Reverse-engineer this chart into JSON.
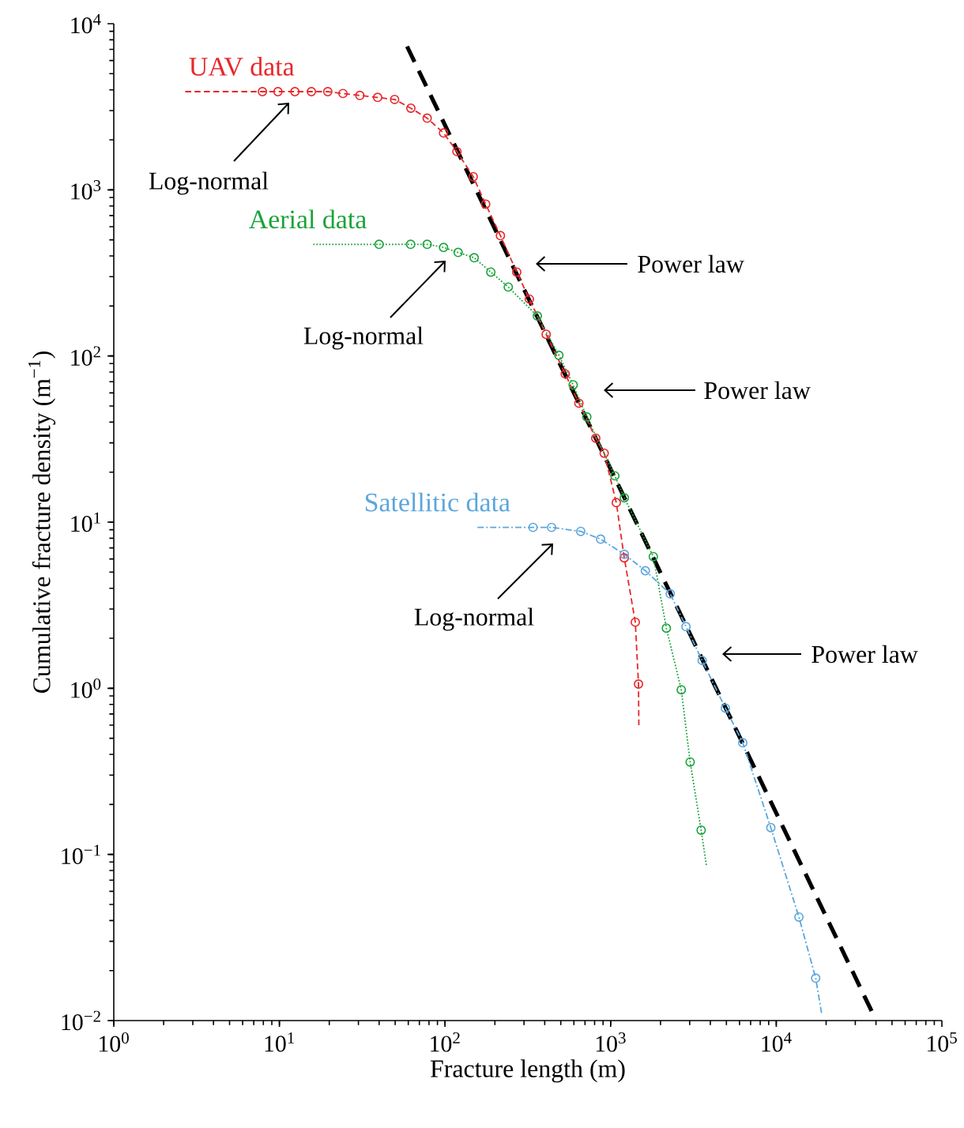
{
  "chart_data": {
    "type": "line",
    "xlabel": "Fracture length (m)",
    "ylabel": "Cumulative fracture density (m$^{−1}$)",
    "log": "xy",
    "grid": false,
    "legend": false,
    "xlim": [
      1,
      100000
    ],
    "ylim": [
      0.01,
      10000
    ],
    "xticks": [
      {
        "value": 1,
        "label": "10$^{0}$"
      },
      {
        "value": 10,
        "label": "10$^{1}$"
      },
      {
        "value": 100,
        "label": "10$^{2}$"
      },
      {
        "value": 1000,
        "label": "10$^{3}$"
      },
      {
        "value": 10000,
        "label": "10$^{4}$"
      },
      {
        "value": 100000,
        "label": "10$^{5}$"
      }
    ],
    "yticks": [
      {
        "value": 0.01,
        "label": "10$^{−2}$"
      },
      {
        "value": 0.1,
        "label": "10$^{−1}$"
      },
      {
        "value": 1,
        "label": "10$^{0}$"
      },
      {
        "value": 10,
        "label": "10$^{1}$"
      },
      {
        "value": 100,
        "label": "10$^{2}$"
      },
      {
        "value": 1000,
        "label": "10$^{3}$"
      },
      {
        "value": 10000,
        "label": "10$^{4}$"
      }
    ],
    "series": [
      {
        "color": "#000000",
        "line_style": "dashed",
        "marker": "none",
        "x": [
          59,
          39000
        ],
        "values": [
          7300,
          0.0106
        ]
      },
      {
        "name": "UAV data",
        "color": "#e8262a",
        "line_style": "dashed",
        "marker": "none",
        "x": [
          2.7,
          7.9,
          9.8,
          12.4,
          15.6,
          19.6,
          24.2,
          30.6,
          39.2,
          49.6,
          62.2,
          78,
          98,
          118,
          148,
          176,
          216,
          271,
          323,
          408,
          532,
          643,
          813,
          914,
          1082,
          1208,
          1409,
          1473,
          1480
        ],
        "values": [
          3900,
          3900,
          3900,
          3900,
          3900,
          3900,
          3800,
          3700,
          3600,
          3500,
          3100,
          2700,
          2200,
          1700,
          1200,
          820,
          530,
          320,
          220,
          135,
          78,
          52,
          32,
          26,
          13.1,
          6.1,
          2.5,
          1.06,
          0.6
        ]
      },
      {
        "name": "Aerial data",
        "color": "#1aa33a",
        "line_style": "dotted",
        "marker": "none",
        "x": [
          16,
          40,
          62,
          78,
          98,
          120,
          150,
          189,
          241,
          361,
          487,
          594,
          718,
          1060,
          1210,
          1810,
          2170,
          2670,
          3020,
          3520,
          3790
        ],
        "values": [
          470,
          470,
          470,
          470,
          450,
          420,
          390,
          320,
          260,
          174,
          101,
          67,
          43,
          19,
          14,
          6.2,
          2.3,
          0.98,
          0.36,
          0.14,
          0.085
        ]
      },
      {
        "name": "Satellitic data",
        "color": "#5ba6dc",
        "line_style": "dashdot",
        "marker": "none",
        "x": [
          157,
          340,
          440,
          660,
          870,
          1210,
          1620,
          2290,
          2850,
          3570,
          4930,
          6280,
          9270,
          13700,
          17300,
          18800
        ],
        "values": [
          9.3,
          9.3,
          9.3,
          8.8,
          7.9,
          6.4,
          5.1,
          3.7,
          2.35,
          1.47,
          0.76,
          0.47,
          0.145,
          0.042,
          0.018,
          0.011
        ]
      },
      {
        "type": "scatter",
        "color": "#e8262a",
        "marker": "circle",
        "x": [
          7.9,
          9.8,
          12.4,
          15.6,
          19.6,
          24.2,
          30.6,
          39.2,
          49.6,
          62.2,
          78,
          1082,
          1208,
          1409,
          1473
        ],
        "values": [
          3900,
          3900,
          3900,
          3900,
          3900,
          3800,
          3700,
          3600,
          3500,
          3100,
          2700,
          13.1,
          6.1,
          2.5,
          1.06
        ]
      },
      {
        "type": "scatter",
        "color": "#e8262a",
        "marker": "circle",
        "x": [
          98,
          118,
          148,
          176,
          216,
          271,
          323,
          408,
          532,
          643,
          813,
          914
        ],
        "values": [
          2200,
          1700,
          1200,
          820,
          530,
          320,
          220,
          135,
          78,
          52,
          32,
          26
        ]
      },
      {
        "type": "scatter",
        "color": "#1aa33a",
        "marker": "circle",
        "x": [
          40,
          62,
          78,
          98,
          120,
          150,
          189,
          241,
          2170,
          2670,
          3020,
          3520
        ],
        "values": [
          470,
          470,
          470,
          450,
          420,
          390,
          320,
          260,
          2.3,
          0.98,
          0.36,
          0.14
        ]
      },
      {
        "type": "scatter",
        "color": "#1aa33a",
        "marker": "circle",
        "x": [
          361,
          487,
          594,
          718,
          1060,
          1210,
          1810
        ],
        "values": [
          174,
          101,
          67,
          43,
          19,
          14,
          6.2
        ]
      },
      {
        "type": "scatter",
        "color": "#5ba6dc",
        "marker": "circle",
        "x": [
          440,
          660,
          870,
          1210,
          1620,
          9270,
          13700,
          17300
        ],
        "values": [
          9.3,
          8.8,
          7.9,
          6.4,
          5.1,
          0.145,
          0.042,
          0.018
        ]
      },
      {
        "type": "scatter",
        "color": "#5ba6dc",
        "marker": "circle",
        "x": [
          340,
          2290,
          2850,
          3570,
          4930,
          6280
        ],
        "values": [
          9.3,
          3.7,
          2.35,
          1.47,
          0.76,
          0.47
        ]
      }
    ],
    "annotations": [
      "Log-normal",
      "Power law",
      "Log-normal",
      "Power law",
      "Log-normal",
      "Power law"
    ]
  }
}
